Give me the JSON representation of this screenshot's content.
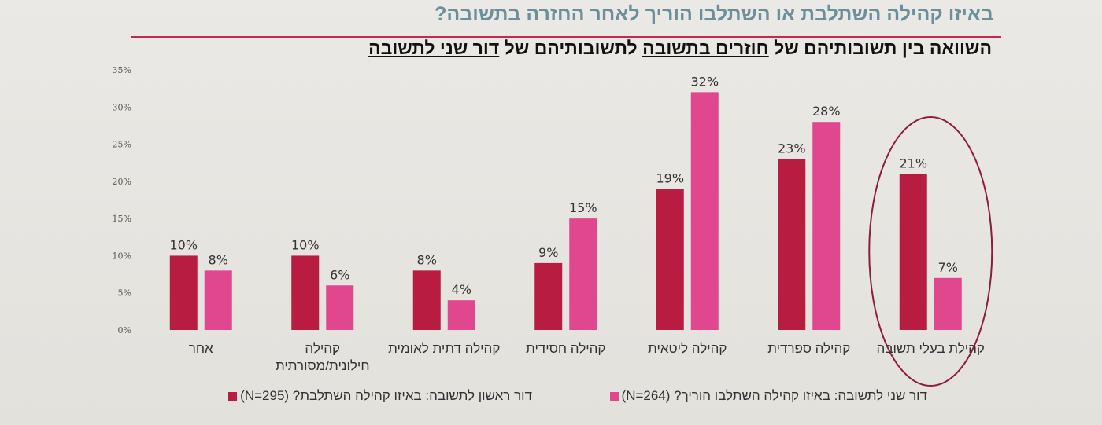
{
  "header": {
    "title": "באיזו קהילה השתלבת או השתלבו הוריך לאחר החזרה בתשובה?",
    "subtitle_parts": [
      "השוואה בין תשובותיהם של ",
      "חוזרים בתשובה",
      " לתשובותיהם של ",
      "דור שני לתשובה"
    ]
  },
  "chart_data": {
    "type": "bar",
    "title": "",
    "xlabel": "",
    "ylabel": "",
    "ylim": [
      0,
      35
    ],
    "yticks": [
      "0%",
      "5%",
      "10%",
      "15%",
      "20%",
      "25%",
      "30%",
      "35%"
    ],
    "grid": false,
    "legend_position": "bottom",
    "categories": [
      "אחר",
      "קהילה חילונית/מסורתית",
      "קהילה דתית לאומית",
      "קהילה חסידית",
      "קהילה ליטאית",
      "קהילה ספרדית",
      "קהילת בעלי תשובה"
    ],
    "series": [
      {
        "name": "דור ראשון לתשובה: באיזו קהילה השתלבת? (N=295)",
        "color": "#b81c41",
        "values": [
          10,
          10,
          8,
          9,
          19,
          23,
          21
        ],
        "labels": [
          "10%",
          "10%",
          "8%",
          "9%",
          "19%",
          "23%",
          "21%"
        ]
      },
      {
        "name": "דור שני לתשובה: באיזו קהילה השתלבו הוריך? (N=264)",
        "color": "#e0478f",
        "values": [
          8,
          6,
          4,
          15,
          32,
          28,
          7
        ],
        "labels": [
          "8%",
          "6%",
          "4%",
          "15%",
          "32%",
          "28%",
          "7%"
        ]
      }
    ],
    "highlight": {
      "category": "קהילת בעלי תשובה",
      "shape": "ellipse",
      "color": "#8e1c3c"
    }
  }
}
